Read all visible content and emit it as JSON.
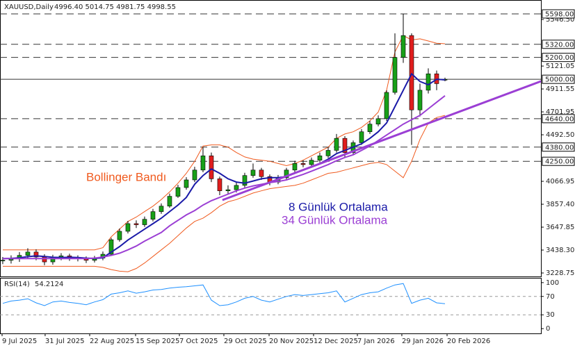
{
  "chart_data": [
    {
      "type": "candlestick",
      "title": "XAUUSD,Daily",
      "subtitle": "4996.40 5014.75 4981.75 4998.55",
      "up_color": "#18a018",
      "down_color": "#e01e1e",
      "xlim": [
        -0.33,
        64.5
      ],
      "ylim": [
        3197,
        5725
      ],
      "yticks": [
        {
          "value": 5546.5,
          "label": "5546.50"
        },
        {
          "value": 5121.05,
          "label": "5121.05"
        },
        {
          "value": 4911.55,
          "label": "4911.55"
        },
        {
          "value": 4701.95,
          "label": "4701.95"
        },
        {
          "value": 4492.5,
          "label": "4492.50"
        },
        {
          "value": 4066.95,
          "label": "4066.95"
        },
        {
          "value": 3857.4,
          "label": "3857.40"
        },
        {
          "value": 3647.85,
          "label": "3647.85"
        },
        {
          "value": 3438.3,
          "label": "3438.30"
        },
        {
          "value": 3228.75,
          "label": "3228.75"
        }
      ],
      "levels": [
        {
          "value": 5598,
          "label": "5598.00",
          "dashed": true
        },
        {
          "value": 5320,
          "label": "5320.00",
          "dashed": true
        },
        {
          "value": 5200,
          "label": "5200.00",
          "dashed": true
        },
        {
          "value": 5000,
          "label": "5000.00",
          "dashed": false
        },
        {
          "value": 4640,
          "label": "4640.00",
          "dashed": true
        },
        {
          "value": 4380,
          "label": "4380.00",
          "dashed": true
        },
        {
          "value": 4250,
          "label": "4250.00",
          "dashed": true
        }
      ],
      "open": [
        3340,
        3345,
        3360,
        3390,
        3420,
        3375,
        3330,
        3370,
        3385,
        3365,
        3360,
        3345,
        3365,
        3400,
        3533,
        3610,
        3680,
        3670,
        3720,
        3790,
        3840,
        3930,
        4010,
        4080,
        4170,
        4300,
        4090,
        3980,
        3990,
        4030,
        4120,
        4170,
        4110,
        4060,
        4100,
        4170,
        4230,
        4220,
        4260,
        4300,
        4350,
        4460,
        4330,
        4420,
        4520,
        4590,
        4640,
        4880,
        5200,
        5400,
        4720,
        4900,
        5050,
        4996.4
      ],
      "high": [
        3375,
        3390,
        3420,
        3455,
        3445,
        3400,
        3395,
        3410,
        3405,
        3390,
        3380,
        3385,
        3425,
        3550,
        3635,
        3705,
        3710,
        3745,
        3815,
        3865,
        3955,
        4035,
        4105,
        4200,
        4380,
        4330,
        4110,
        4030,
        4060,
        4145,
        4230,
        4190,
        4130,
        4125,
        4190,
        4255,
        4260,
        4285,
        4330,
        4380,
        4500,
        4480,
        4440,
        4545,
        4620,
        4670,
        4900,
        5420,
        5598,
        5420,
        4960,
        5100,
        5080,
        5014.75
      ],
      "low": [
        3310,
        3315,
        3330,
        3360,
        3345,
        3300,
        3305,
        3345,
        3340,
        3335,
        3320,
        3325,
        3345,
        3390,
        3515,
        3590,
        3640,
        3650,
        3700,
        3770,
        3825,
        3915,
        3990,
        4060,
        4150,
        4060,
        3940,
        3950,
        3965,
        4010,
        4100,
        4080,
        4030,
        4040,
        4085,
        4150,
        4195,
        4200,
        4240,
        4280,
        4330,
        4280,
        4310,
        4400,
        4500,
        4570,
        4620,
        4860,
        5150,
        4400,
        4660,
        4870,
        4900,
        4981.75
      ],
      "close": [
        3345,
        3360,
        3390,
        3420,
        3375,
        3330,
        3370,
        3385,
        3365,
        3360,
        3345,
        3365,
        3400,
        3533,
        3610,
        3680,
        3670,
        3720,
        3790,
        3840,
        3930,
        4010,
        4080,
        4170,
        4300,
        4090,
        3980,
        3990,
        4030,
        4120,
        4170,
        4110,
        4060,
        4100,
        4170,
        4230,
        4220,
        4260,
        4300,
        4350,
        4460,
        4330,
        4420,
        4520,
        4590,
        4640,
        4880,
        5200,
        5400,
        4720,
        4900,
        5050,
        4960,
        4998.55
      ],
      "bollinger": {
        "name": "Bollinger Bandı",
        "color": "#f05a1e",
        "upper": [
          3440,
          3440,
          3440,
          3440,
          3440,
          3440,
          3440,
          3440,
          3440,
          3440,
          3440,
          3440,
          3460,
          3560,
          3630,
          3700,
          3740,
          3790,
          3840,
          3900,
          3970,
          4050,
          4140,
          4250,
          4390,
          4400,
          4400,
          4380,
          4330,
          4290,
          4270,
          4260,
          4250,
          4230,
          4210,
          4230,
          4260,
          4300,
          4340,
          4380,
          4460,
          4500,
          4520,
          4560,
          4620,
          4700,
          4900,
          5250,
          5400,
          5360,
          5370,
          5350,
          5330,
          5325
        ],
        "lower": [
          3290,
          3290,
          3290,
          3290,
          3290,
          3290,
          3290,
          3290,
          3290,
          3290,
          3290,
          3290,
          3280,
          3260,
          3245,
          3240,
          3270,
          3320,
          3380,
          3440,
          3500,
          3570,
          3640,
          3700,
          3730,
          3780,
          3840,
          3880,
          3900,
          3930,
          3960,
          3980,
          4000,
          4010,
          4020,
          4030,
          4050,
          4080,
          4110,
          4140,
          4150,
          4170,
          4190,
          4210,
          4230,
          4240,
          4220,
          4160,
          4100,
          4250,
          4450,
          4600,
          4650,
          4670
        ]
      },
      "series": [
        {
          "name": "8 Günlük Ortalama",
          "color": "#1a1aa8",
          "values": [
            3360,
            3362,
            3368,
            3378,
            3385,
            3380,
            3372,
            3370,
            3372,
            3370,
            3365,
            3362,
            3368,
            3420,
            3470,
            3530,
            3580,
            3630,
            3680,
            3730,
            3790,
            3850,
            3920,
            4040,
            4120,
            4180,
            4140,
            4090,
            4060,
            4050,
            4070,
            4090,
            4100,
            4100,
            4110,
            4140,
            4170,
            4200,
            4230,
            4270,
            4320,
            4350,
            4380,
            4410,
            4460,
            4520,
            4600,
            4750,
            4900,
            5050,
            4980,
            4950,
            5000,
            4995
          ]
        },
        {
          "name": "34 Günlük Ortalama",
          "color": "#9b3fd4",
          "values": [
            3360,
            3360,
            3360,
            3360,
            3360,
            3360,
            3360,
            3360,
            3360,
            3360,
            3360,
            3365,
            3375,
            3390,
            3410,
            3440,
            3475,
            3520,
            3560,
            3600,
            3660,
            3710,
            3760,
            3800,
            3850,
            3890,
            3920,
            3950,
            3980,
            4005,
            4025,
            4040,
            4055,
            4065,
            4080,
            4105,
            4130,
            4160,
            4190,
            4220,
            4255,
            4285,
            4310,
            4350,
            4390,
            4440,
            4490,
            4540,
            4590,
            4630,
            4670,
            4730,
            4790,
            4850
          ]
        }
      ],
      "trendline": {
        "color": "#9b3fd4",
        "x": [
          26.33,
          64.5
        ],
        "values": [
          3896,
          4982
        ]
      }
    },
    {
      "type": "line",
      "title": "RSI(14)",
      "xlim": [
        -0.33,
        64.5
      ],
      "ylim": [
        -10.4,
        110.4
      ],
      "yticks": [
        100,
        70,
        30,
        0
      ],
      "levels": [
        70,
        30
      ],
      "xticks": [
        {
          "value": -0.08,
          "label": "9 Jul 2025"
        },
        {
          "value": 5.08,
          "label": "31 Jul 2025"
        },
        {
          "value": 10.42,
          "label": "22 Aug 2025"
        },
        {
          "value": 15.92,
          "label": "15 Sep 2025"
        },
        {
          "value": 21.17,
          "label": "7 Oct 2025"
        },
        {
          "value": 26.5,
          "label": "29 Oct 2025"
        },
        {
          "value": 31.92,
          "label": "20 Nov 2025"
        },
        {
          "value": 37.25,
          "label": "12 Dec 2025"
        },
        {
          "value": 42.5,
          "label": "7 Jan 2026"
        },
        {
          "value": 47.83,
          "label": "29 Jan 2026"
        },
        {
          "value": 53.25,
          "label": "20 Feb 2026"
        }
      ],
      "series": [
        {
          "color": "#1e90ff",
          "values": [
            55,
            60,
            62,
            65,
            56,
            50,
            58,
            60,
            57,
            55,
            52,
            58,
            63,
            75,
            78,
            82,
            77,
            80,
            84,
            85,
            88,
            90,
            91,
            93,
            95,
            62,
            50,
            52,
            58,
            66,
            70,
            62,
            58,
            64,
            70,
            74,
            72,
            74,
            76,
            78,
            82,
            58,
            66,
            74,
            78,
            80,
            88,
            95,
            98,
            55,
            62,
            66,
            56,
            54.2124
          ]
        }
      ]
    }
  ]
}
